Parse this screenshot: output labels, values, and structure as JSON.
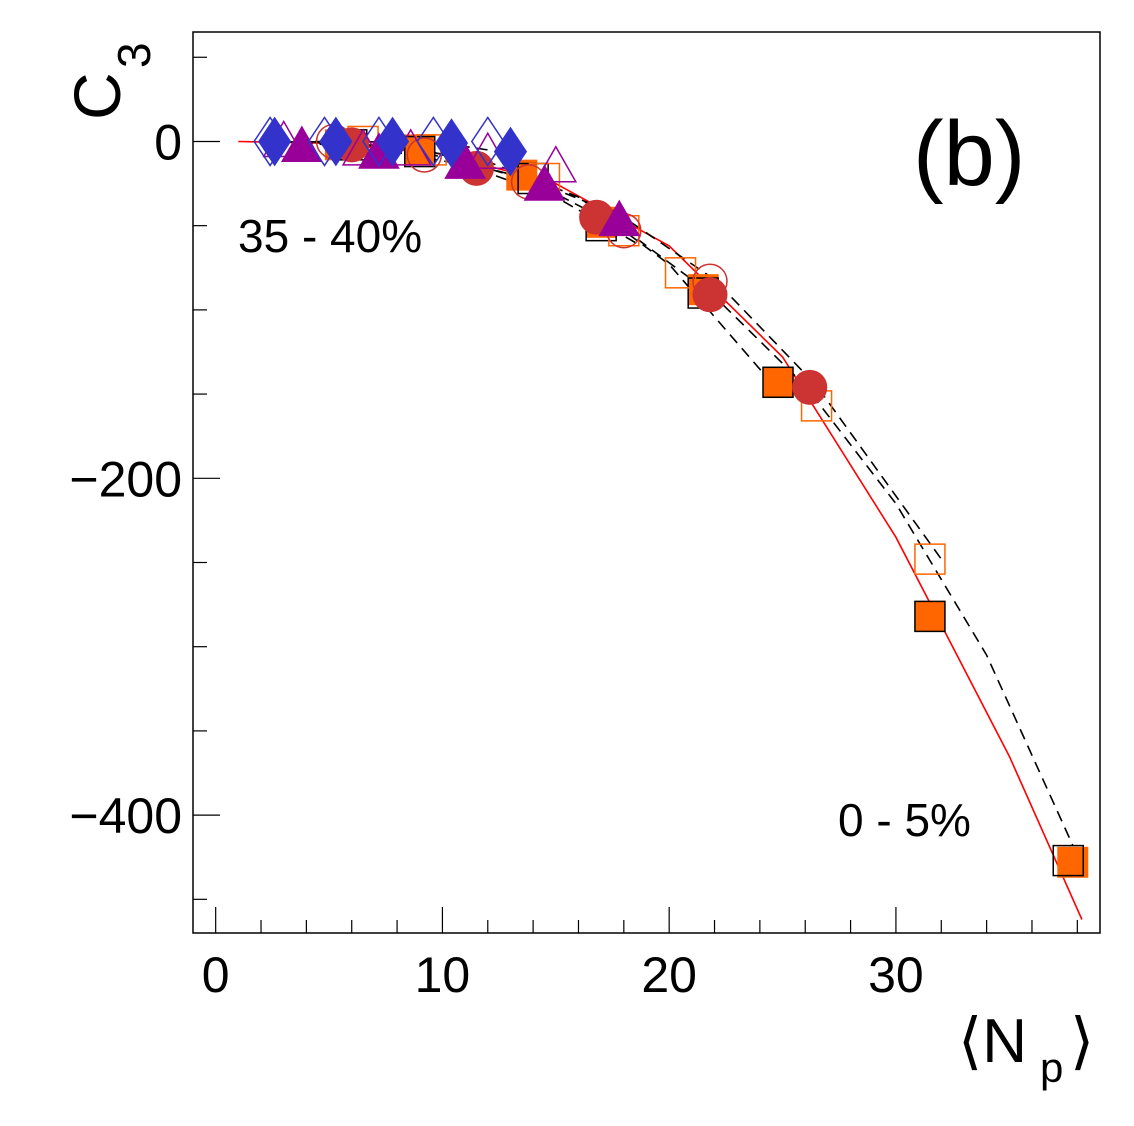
{
  "chart_data": {
    "type": "scatter",
    "title": "",
    "panel_label": "(b)",
    "xlabel": "⟨N",
    "xlabel_sub": "p",
    "xlabel_close": "⟩",
    "ylabel": "C",
    "ylabel_sub": "3",
    "xlim": [
      -1,
      39
    ],
    "ylim": [
      -470,
      65
    ],
    "x_ticks": [
      0,
      10,
      20,
      30
    ],
    "x_tick_labels": [
      "0",
      "10",
      "20",
      "30"
    ],
    "y_ticks": [
      0,
      -200,
      -400
    ],
    "y_tick_labels": [
      "0",
      "−200",
      "−400"
    ],
    "grid": false,
    "legend": "none",
    "annotations": [
      {
        "text": "35 - 40%",
        "x": 1,
        "y": -57
      },
      {
        "text": "0 - 5%",
        "x": 27.5,
        "y": -415
      }
    ],
    "series": [
      {
        "marker": "square",
        "filled": true,
        "color": "#ff6600",
        "x": [
          5.5,
          9,
          13.5,
          17,
          21.5,
          24.8,
          31.5,
          37.8
        ],
        "y": [
          -2,
          -5,
          -20,
          -48,
          -88,
          -143,
          -282,
          -428
        ]
      },
      {
        "marker": "square",
        "filled": false,
        "color": "#000000",
        "x": [
          6,
          9,
          14,
          17,
          21.5,
          24.8,
          31.5,
          37.6
        ],
        "y": [
          -2,
          -6,
          -22,
          -50,
          -90,
          -143,
          -282,
          -427
        ]
      },
      {
        "marker": "square",
        "filled": false,
        "color": "#ff6600",
        "x": [
          6.5,
          9.5,
          14.5,
          18,
          20.5,
          26.5,
          31.5
        ],
        "y": [
          0,
          -5,
          -22,
          -53,
          -78,
          -157,
          -248
        ]
      },
      {
        "marker": "circle",
        "filled": true,
        "color": "#cc3333",
        "x": [
          6,
          11.5,
          16.8,
          21.8,
          26.2
        ],
        "y": [
          -2,
          -16,
          -45,
          -91,
          -146
        ]
      },
      {
        "marker": "circle",
        "filled": false,
        "color": "#cc3333",
        "x": [
          5.2,
          9.2,
          13.8,
          18,
          21.8
        ],
        "y": [
          0,
          -8,
          -24,
          -53,
          -83
        ]
      },
      {
        "marker": "triangle",
        "filled": true,
        "color": "#990099",
        "x": [
          3.8,
          7.2,
          11,
          14.5,
          17.8
        ],
        "y": [
          -3,
          -7,
          -13,
          -26,
          -47
        ]
      },
      {
        "marker": "triangle",
        "filled": false,
        "color": "#990099",
        "x": [
          3,
          6.5,
          8.6,
          12,
          15
        ],
        "y": [
          0,
          -5,
          -5,
          -7,
          -15
        ]
      },
      {
        "marker": "diamond",
        "filled": true,
        "color": "#3333cc",
        "x": [
          2.6,
          5.3,
          7.8,
          10.4,
          13
        ],
        "y": [
          0,
          0,
          0,
          -1,
          -6
        ]
      },
      {
        "marker": "diamond",
        "filled": false,
        "color": "#3333cc",
        "x": [
          2.4,
          4.8,
          7.2,
          9.6,
          12
        ],
        "y": [
          0,
          0,
          0,
          0,
          0
        ]
      }
    ],
    "curves": [
      {
        "style": "solid",
        "color": "#ff0000",
        "width": 1.6,
        "x": [
          1,
          5,
          10,
          15,
          20,
          25,
          30,
          35,
          38.2
        ],
        "y": [
          0,
          -1,
          -7.5,
          -25,
          -62,
          -128,
          -235,
          -365,
          -462
        ]
      },
      {
        "style": "dashed",
        "color": "#000000",
        "width": 1.6,
        "x": [
          2,
          6,
          10,
          14,
          18,
          22,
          26,
          30,
          34,
          37.8
        ],
        "y": [
          0,
          -1,
          -8,
          -24,
          -52,
          -92,
          -145,
          -215,
          -305,
          -418
        ]
      },
      {
        "style": "dashed",
        "color": "#000000",
        "width": 1.6,
        "x": [
          3,
          6,
          10,
          14,
          18,
          22,
          26.5,
          32
        ],
        "y": [
          0,
          -2,
          -9,
          -23,
          -45,
          -82,
          -145,
          -248
        ]
      },
      {
        "style": "dashed",
        "color": "#000000",
        "width": 1.6,
        "x": [
          4,
          8,
          12,
          16,
          20,
          24.5
        ],
        "y": [
          0,
          -3,
          -12,
          -33,
          -73,
          -143
        ]
      },
      {
        "style": "dashed",
        "color": "#000000",
        "width": 1.6,
        "x": [
          3,
          7,
          11,
          15,
          18.5
        ],
        "y": [
          0,
          -4,
          -14,
          -33,
          -60
        ]
      },
      {
        "style": "dashed",
        "color": "#000000",
        "width": 1.6,
        "x": [
          2,
          6,
          10,
          12
        ],
        "y": [
          0,
          0,
          -1,
          -5
        ]
      }
    ]
  }
}
